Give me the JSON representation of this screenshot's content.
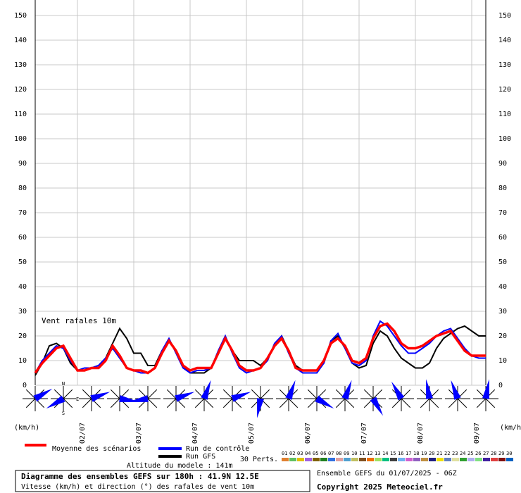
{
  "chart_data": {
    "type": "line",
    "annotation": "Vent rafales 10m",
    "y_unit_left": "(km/h)",
    "y_unit_right": "(km/h)",
    "x": [
      0,
      3,
      6,
      9,
      12,
      15,
      18,
      21,
      24,
      27,
      30,
      33,
      36,
      39,
      42,
      45,
      48,
      51,
      54,
      57,
      60,
      63,
      66,
      69,
      72,
      75,
      78,
      81,
      84,
      87,
      90,
      93,
      96,
      99,
      102,
      105,
      108,
      111,
      114,
      117,
      120,
      123,
      126,
      129,
      132,
      135,
      138,
      141,
      144,
      147,
      150,
      153,
      156,
      159,
      162,
      165,
      168,
      171,
      174,
      177,
      180,
      183,
      186,
      189,
      192
    ],
    "xlim": [
      0,
      192
    ],
    "xticks": [
      {
        "value": 18,
        "label": "02/07"
      },
      {
        "value": 42,
        "label": "03/07"
      },
      {
        "value": 66,
        "label": "04/07"
      },
      {
        "value": 90,
        "label": "05/07"
      },
      {
        "value": 114,
        "label": "06/07"
      },
      {
        "value": 138,
        "label": "07/07"
      },
      {
        "value": 162,
        "label": "08/07"
      },
      {
        "value": 186,
        "label": "09/07"
      }
    ],
    "ylim": [
      0,
      150
    ],
    "yticks": [
      0,
      10,
      20,
      30,
      40,
      50,
      60,
      70,
      80,
      90,
      100,
      110,
      120,
      130,
      140,
      150
    ],
    "grid": true,
    "series": [
      {
        "name": "Moyenne des scénarios",
        "color": "#ff0000",
        "values": [
          5,
          9,
          12,
          15,
          16,
          11,
          6,
          6,
          7,
          7,
          10,
          16,
          12,
          7,
          6,
          6,
          5,
          7,
          13,
          18,
          14,
          8,
          6,
          7,
          7,
          7,
          13,
          19,
          14,
          8,
          6,
          6,
          7,
          11,
          16,
          19,
          14,
          7,
          6,
          6,
          6,
          10,
          17,
          19,
          16,
          10,
          9,
          11,
          19,
          24,
          25,
          22,
          17,
          15,
          15,
          16,
          18,
          20,
          21,
          22,
          18,
          14,
          12,
          12,
          12
        ]
      },
      {
        "name": "Run de contrôle",
        "color": "#0000ff",
        "values": [
          5,
          10,
          13,
          16,
          15,
          10,
          6,
          7,
          7,
          8,
          11,
          15,
          11,
          7,
          6,
          5,
          5,
          7,
          14,
          19,
          13,
          7,
          5,
          6,
          6,
          7,
          14,
          20,
          13,
          7,
          5,
          6,
          7,
          10,
          17,
          20,
          13,
          7,
          5,
          5,
          5,
          9,
          18,
          21,
          15,
          9,
          8,
          10,
          20,
          26,
          24,
          20,
          16,
          13,
          13,
          15,
          17,
          20,
          22,
          23,
          19,
          15,
          12,
          11,
          11
        ]
      },
      {
        "name": "Run GFS",
        "color": "#000000",
        "values": [
          4,
          9,
          16,
          17,
          15,
          9,
          6,
          6,
          7,
          8,
          11,
          17,
          23,
          19,
          13,
          13,
          8,
          8,
          14,
          18,
          14,
          8,
          5,
          5,
          5,
          7,
          13,
          19,
          14,
          10,
          10,
          10,
          8,
          11,
          16,
          20,
          14,
          8,
          6,
          6,
          6,
          9,
          18,
          20,
          15,
          9,
          7,
          8,
          17,
          22,
          20,
          15,
          11,
          9,
          7,
          7,
          9,
          15,
          19,
          21,
          23,
          24,
          22,
          20,
          20
        ]
      }
    ],
    "wind_directions": [
      240,
      60,
      250,
      280,
      80,
      250,
      200,
      250,
      10,
      200,
      300,
      200,
      330,
      150,
      170,
      160,
      190
    ],
    "compass": [
      "N",
      "E",
      "S"
    ],
    "perturbations_label": "30 Perts.",
    "perturbations": [
      {
        "name": "01",
        "color": "#e08030"
      },
      {
        "name": "02",
        "color": "#60c060"
      },
      {
        "name": "03",
        "color": "#e0c000"
      },
      {
        "name": "04",
        "color": "#a060e0"
      },
      {
        "name": "05",
        "color": "#806000"
      },
      {
        "name": "06",
        "color": "#208020"
      },
      {
        "name": "07",
        "color": "#3070e0"
      },
      {
        "name": "08",
        "color": "#e0a0a0"
      },
      {
        "name": "09",
        "color": "#50a0d0"
      },
      {
        "name": "10",
        "color": "#c0c060"
      },
      {
        "name": "11",
        "color": "#805020"
      },
      {
        "name": "12",
        "color": "#f07000"
      },
      {
        "name": "13",
        "color": "#a0e060"
      },
      {
        "name": "14",
        "color": "#00c080"
      },
      {
        "name": "15",
        "color": "#404040"
      },
      {
        "name": "16",
        "color": "#70b0f0"
      },
      {
        "name": "17",
        "color": "#d060d0"
      },
      {
        "name": "18",
        "color": "#9060c0"
      },
      {
        "name": "19",
        "color": "#c09040"
      },
      {
        "name": "20",
        "color": "#202080"
      },
      {
        "name": "21",
        "color": "#f0e000"
      },
      {
        "name": "22",
        "color": "#6080c0"
      },
      {
        "name": "23",
        "color": "#e0e0a0"
      },
      {
        "name": "24",
        "color": "#30a030"
      },
      {
        "name": "25",
        "color": "#b0b0f0"
      },
      {
        "name": "26",
        "color": "#80e080"
      },
      {
        "name": "27",
        "color": "#4020a0"
      },
      {
        "name": "28",
        "color": "#e04040"
      },
      {
        "name": "29",
        "color": "#801010"
      },
      {
        "name": "30",
        "color": "#0060c0"
      }
    ],
    "altitude": "Altitude du modele : 141m",
    "footer_title": "Diagramme des ensembles GEFS sur 180h : 41.9N 12.5E",
    "footer_subtitle": "Vitesse (km/h) et direction (°) des rafales de vent 10m",
    "run_info": "Ensemble GEFS du 01/07/2025 - 06Z",
    "copyright": "Copyright 2025 Meteociel.fr"
  }
}
